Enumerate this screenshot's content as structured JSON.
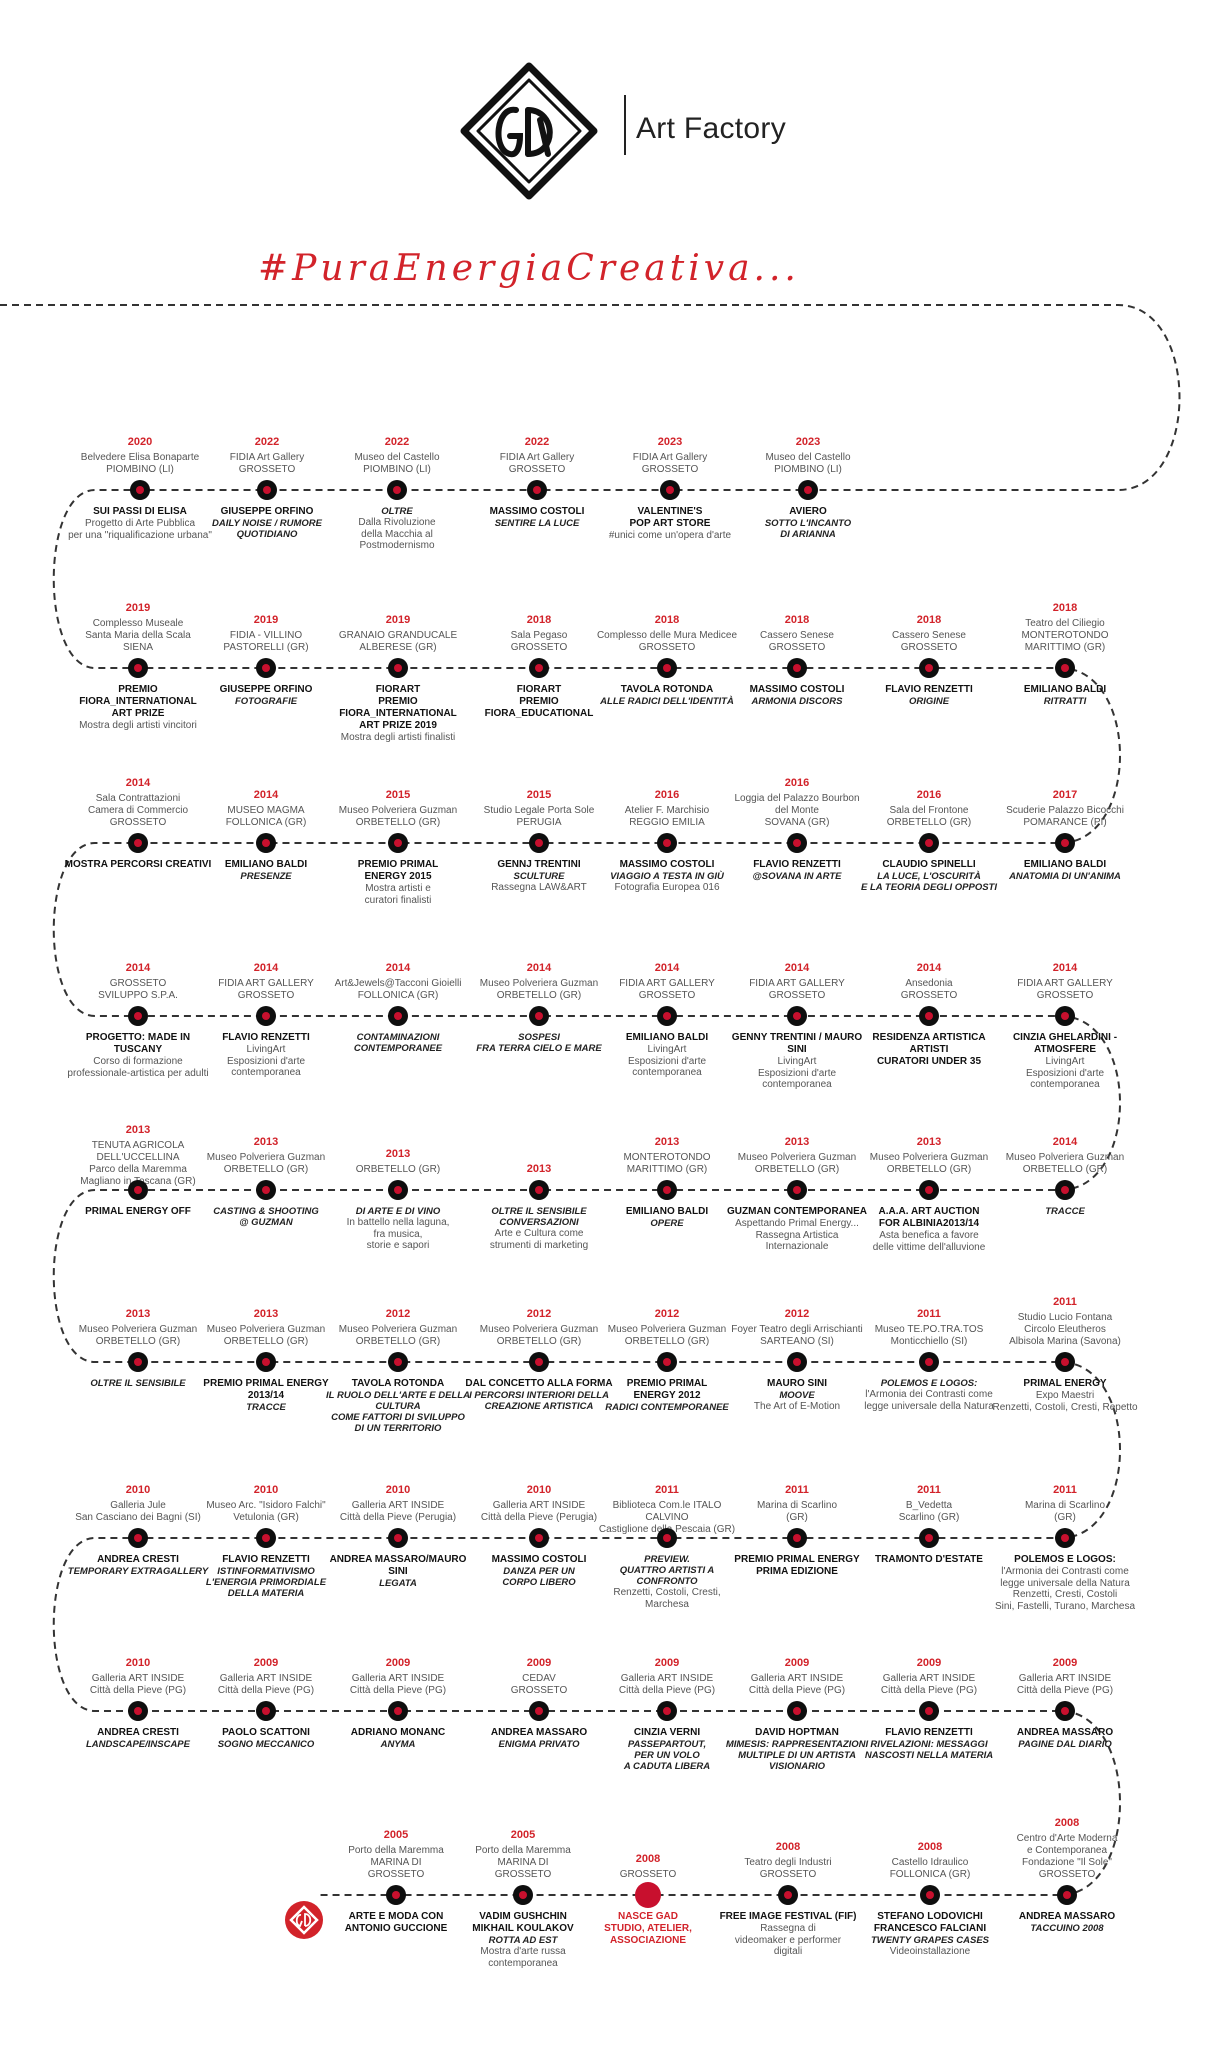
{
  "brand": {
    "logo_text": "GAD",
    "name": "Art Factory",
    "tagline": "#PuraEnergiaCreativa...",
    "accent_color": "#d2232a"
  },
  "rows": [
    {
      "direction": "ltr",
      "events": [
        {
          "year": "2020",
          "venue": "Belvedere Elisa Bonaparte\nPIOMBINO (LI)",
          "title": "SUI PASSI DI ELISA",
          "subtitle": "",
          "desc": "Progetto di Arte Pubblica\nper una \"riqualificazione urbana\""
        },
        {
          "year": "2022",
          "venue": "FIDIA Art Gallery\nGROSSETO",
          "title": "GIUSEPPE ORFINO",
          "subtitle": "DAILY NOISE / RUMORE\nQUOTIDIANO",
          "desc": ""
        },
        {
          "year": "2022",
          "venue": "Museo del Castello\nPIOMBINO (LI)",
          "title": "",
          "subtitle": "OLTRE",
          "desc": "Dalla Rivoluzione\ndella Macchia al\nPostmodernismo"
        },
        {
          "year": "2022",
          "venue": "FIDIA Art Gallery\nGROSSETO",
          "title": "MASSIMO COSTOLI",
          "subtitle": "SENTIRE LA LUCE",
          "desc": ""
        },
        {
          "year": "2023",
          "venue": "FIDIA Art Gallery\nGROSSETO",
          "title": "VALENTINE'S\nPOP ART STORE",
          "subtitle": "",
          "desc": "#unici come un'opera d'arte"
        },
        {
          "year": "2023",
          "venue": "Museo del Castello\nPIOMBINO (LI)",
          "title": "AVIERO",
          "subtitle": "SOTTO L'INCANTO\nDI ARIANNA",
          "desc": ""
        }
      ]
    },
    {
      "direction": "rtl",
      "events": [
        {
          "year": "2019",
          "venue": "Complesso Museale\nSanta Maria della Scala\nSIENA",
          "title": "PREMIO FIORA_INTERNATIONAL\nART PRIZE",
          "subtitle": "",
          "desc": "Mostra degli artisti vincitori"
        },
        {
          "year": "2019",
          "venue": "FIDIA - VILLINO\nPASTORELLI (GR)",
          "title": "GIUSEPPE ORFINO",
          "subtitle": "FOTOGRAFIE",
          "desc": ""
        },
        {
          "year": "2019",
          "venue": "GRANAIO GRANDUCALE\nALBERESE (GR)",
          "title": "FIORART\nPREMIO FIORA_INTERNATIONAL\nART PRIZE 2019",
          "subtitle": "",
          "desc": "Mostra degli artisti finalisti"
        },
        {
          "year": "2018",
          "venue": "Sala Pegaso\nGROSSETO",
          "title": "FIORART\nPREMIO\nFIORA_EDUCATIONAL",
          "subtitle": "",
          "desc": ""
        },
        {
          "year": "2018",
          "venue": "Complesso delle Mura Medicee\nGROSSETO",
          "title": "TAVOLA ROTONDA",
          "subtitle": "ALLE RADICI DELL'IDENTITÀ",
          "desc": ""
        },
        {
          "year": "2018",
          "venue": "Cassero Senese\nGROSSETO",
          "title": "MASSIMO COSTOLI",
          "subtitle": "ARMONIA DISCORS",
          "desc": ""
        },
        {
          "year": "2018",
          "venue": "Cassero Senese\nGROSSETO",
          "title": "FLAVIO RENZETTI",
          "subtitle": "ORIGINE",
          "desc": ""
        },
        {
          "year": "2018",
          "venue": "Teatro del Ciliegio\nMONTEROTONDO\nMARITTIMO (GR)",
          "title": "EMILIANO BALDI",
          "subtitle": "RITRATTI",
          "desc": ""
        }
      ]
    },
    {
      "direction": "ltr",
      "events": [
        {
          "year": "2014",
          "venue": "Sala Contrattazioni\nCamera di Commercio\nGROSSETO",
          "title": "MOSTRA PERCORSI CREATIVI",
          "subtitle": "",
          "desc": ""
        },
        {
          "year": "2014",
          "venue": "MUSEO MAGMA\nFOLLONICA (GR)",
          "title": "EMILIANO BALDI",
          "subtitle": "PRESENZE",
          "desc": ""
        },
        {
          "year": "2015",
          "venue": "Museo Polveriera Guzman\nORBETELLO (GR)",
          "title": "PREMIO PRIMAL\nENERGY 2015",
          "subtitle": "",
          "desc": "Mostra artisti e\ncuratori finalisti"
        },
        {
          "year": "2015",
          "venue": "Studio Legale Porta Sole\nPERUGIA",
          "title": "GENNJ TRENTINI",
          "subtitle": "SCULTURE",
          "desc": "Rassegna LAW&ART"
        },
        {
          "year": "2016",
          "venue": "Atelier F. Marchisio\nREGGIO EMILIA",
          "title": "MASSIMO COSTOLI",
          "subtitle": "VIAGGIO A TESTA IN GIÙ",
          "desc": "Fotografia Europea 016"
        },
        {
          "year": "2016",
          "venue": "Loggia del Palazzo Bourbon\ndel Monte\nSOVANA (GR)",
          "title": "FLAVIO RENZETTI",
          "subtitle": "@SOVANA IN ARTE",
          "desc": ""
        },
        {
          "year": "2016",
          "venue": "Sala del Frontone\nORBETELLO (GR)",
          "title": "CLAUDIO SPINELLI",
          "subtitle": "LA LUCE, L'OSCURITÀ\nE LA TEORIA DEGLI OPPOSTI",
          "desc": ""
        },
        {
          "year": "2017",
          "venue": "Scuderie Palazzo Bicocchi\nPOMARANCE (PI)",
          "title": "EMILIANO BALDI",
          "subtitle": "ANATOMIA DI UN'ANIMA",
          "desc": ""
        }
      ]
    },
    {
      "direction": "rtl",
      "events": [
        {
          "year": "2014",
          "venue": "GROSSETO\nSVILUPPO S.P.A.",
          "title": "PROGETTO: MADE IN TUSCANY",
          "subtitle": "",
          "desc": "Corso di formazione\nprofessionale-artistica per adulti"
        },
        {
          "year": "2014",
          "venue": "FIDIA ART GALLERY\nGROSSETO",
          "title": "FLAVIO RENZETTI",
          "subtitle": "",
          "desc": "LivingArt\nEsposizioni d'arte\ncontemporanea"
        },
        {
          "year": "2014",
          "venue": "Art&Jewels@Tacconi Gioielli\nFOLLONICA (GR)",
          "title": "",
          "subtitle": "CONTAMINAZIONI\nCONTEMPORANEE",
          "desc": ""
        },
        {
          "year": "2014",
          "venue": "Museo Polveriera Guzman\nORBETELLO (GR)",
          "title": "",
          "subtitle": "SOSPESI\nFRA TERRA CIELO E MARE",
          "desc": ""
        },
        {
          "year": "2014",
          "venue": "FIDIA ART GALLERY\nGROSSETO",
          "title": "EMILIANO BALDI",
          "subtitle": "",
          "desc": "LivingArt\nEsposizioni d'arte\ncontemporanea"
        },
        {
          "year": "2014",
          "venue": "FIDIA ART GALLERY\nGROSSETO",
          "title": "GENNY TRENTINI / MAURO SINI",
          "subtitle": "",
          "desc": "LivingArt\nEsposizioni d'arte\ncontemporanea"
        },
        {
          "year": "2014",
          "venue": "Ansedonia\nGROSSETO",
          "title": "RESIDENZA ARTISTICA\nARTISTI\nCURATORI UNDER 35",
          "subtitle": "",
          "desc": ""
        },
        {
          "year": "2014",
          "venue": "FIDIA ART GALLERY\nGROSSETO",
          "title": "CINZIA GHELARDINI - ATMOSFERE",
          "subtitle": "",
          "desc": "LivingArt\nEsposizioni d'arte\ncontemporanea"
        }
      ]
    },
    {
      "direction": "ltr",
      "events": [
        {
          "year": "2013",
          "venue": "TENUTA AGRICOLA DELL'UCCELLINA\nParco della Maremma\nMagliano in Toscana (GR)",
          "title": "PRIMAL ENERGY OFF",
          "subtitle": "",
          "desc": ""
        },
        {
          "year": "2013",
          "venue": "Museo Polveriera Guzman\nORBETELLO (GR)",
          "title": "",
          "subtitle": "CASTING & SHOOTING\n@ GUZMAN",
          "desc": ""
        },
        {
          "year": "2013",
          "venue": "ORBETELLO (GR)",
          "title": "",
          "subtitle": "DI ARTE E DI VINO",
          "desc": "In battello nella laguna,\nfra musica,\nstorie e sapori"
        },
        {
          "year": "2013",
          "venue": "",
          "title": "",
          "subtitle": "OLTRE IL SENSIBILE\nCONVERSAZIONI",
          "desc": "Arte e Cultura come\nstrumenti di marketing"
        },
        {
          "year": "2013",
          "venue": "MONTEROTONDO\nMARITTIMO (GR)",
          "title": "EMILIANO BALDI",
          "subtitle": "OPERE",
          "desc": ""
        },
        {
          "year": "2013",
          "venue": "Museo Polveriera Guzman\nORBETELLO (GR)",
          "title": "GUZMAN CONTEMPORANEA",
          "subtitle": "",
          "desc": "Aspettando Primal Energy...\nRassegna Artistica Internazionale"
        },
        {
          "year": "2013",
          "venue": "Museo Polveriera Guzman\nORBETELLO (GR)",
          "title": "A.A.A. ART AUCTION\nFOR ALBINIA2013/14",
          "subtitle": "",
          "desc": "Asta benefica a favore\ndelle vittime dell'alluvione"
        },
        {
          "year": "2014",
          "venue": "Museo Polveriera Guzman\nORBETELLO (GR)",
          "title": "",
          "subtitle": "TRACCE",
          "desc": ""
        }
      ]
    },
    {
      "direction": "rtl",
      "events": [
        {
          "year": "2013",
          "venue": "Museo Polveriera Guzman\nORBETELLO (GR)",
          "title": "",
          "subtitle": "OLTRE IL SENSIBILE",
          "desc": ""
        },
        {
          "year": "2013",
          "venue": "Museo Polveriera Guzman\nORBETELLO (GR)",
          "title": "PREMIO PRIMAL ENERGY\n2013/14",
          "subtitle": "TRACCE",
          "desc": ""
        },
        {
          "year": "2012",
          "venue": "Museo Polveriera Guzman\nORBETELLO (GR)",
          "title": "TAVOLA ROTONDA",
          "subtitle": "IL RUOLO DELL'ARTE E DELLA CULTURA\nCOME FATTORI DI SVILUPPO\nDI UN TERRITORIO",
          "desc": ""
        },
        {
          "year": "2012",
          "venue": "Museo Polveriera Guzman\nORBETELLO (GR)",
          "title": "DAL CONCETTO ALLA FORMA",
          "subtitle": "I PERCORSI INTERIORI DELLA\nCREAZIONE ARTISTICA",
          "desc": ""
        },
        {
          "year": "2012",
          "venue": "Museo Polveriera Guzman\nORBETELLO (GR)",
          "title": "PREMIO PRIMAL\nENERGY 2012",
          "subtitle": "RADICI CONTEMPORANEE",
          "desc": ""
        },
        {
          "year": "2012",
          "venue": "Foyer Teatro degli Arrischianti\nSARTEANO (SI)",
          "title": "MAURO SINI",
          "subtitle": "MOOVE",
          "desc": "The Art of E-Motion"
        },
        {
          "year": "2011",
          "venue": "Museo TE.PO.TRA.TOS\nMonticchiello (SI)",
          "title": "",
          "subtitle": "POLEMOS E LOGOS:",
          "desc": "l'Armonia dei Contrasti come\nlegge universale della Natura"
        },
        {
          "year": "2011",
          "venue": "Studio Lucio Fontana\nCircolo Eleutheros\nAlbisola Marina (Savona)",
          "title": "PRIMAL ENERGY",
          "subtitle": "",
          "desc": "Expo Maestri\nRenzetti, Costoli, Cresti, Repetto"
        }
      ]
    },
    {
      "direction": "ltr",
      "events": [
        {
          "year": "2010",
          "venue": "Galleria Jule\nSan Casciano dei Bagni (SI)",
          "title": "ANDREA CRESTI",
          "subtitle": "TEMPORARY EXTRAGALLERY",
          "desc": ""
        },
        {
          "year": "2010",
          "venue": "Museo Arc. \"Isidoro Falchi\"\nVetulonia (GR)",
          "title": "FLAVIO RENZETTI",
          "subtitle": "ISTINFORMATIVISMO\nL'ENERGIA PRIMORDIALE\nDELLA MATERIA",
          "desc": ""
        },
        {
          "year": "2010",
          "venue": "Galleria ART INSIDE\nCittà della Pieve (Perugia)",
          "title": "ANDREA MASSARO/MAURO SINI",
          "subtitle": "LEGATA",
          "desc": ""
        },
        {
          "year": "2010",
          "venue": "Galleria ART INSIDE\nCittà della Pieve (Perugia)",
          "title": "MASSIMO COSTOLI",
          "subtitle": "DANZA PER UN\nCORPO LIBERO",
          "desc": ""
        },
        {
          "year": "2011",
          "venue": "Biblioteca Com.le ITALO CALVINO\nCastiglione della Pescaia (GR)",
          "title": "",
          "subtitle": "PREVIEW.\nQUATTRO ARTISTI A CONFRONTO",
          "desc": "Renzetti, Costoli, Cresti, Marchesa"
        },
        {
          "year": "2011",
          "venue": "Marina di Scarlino\n(GR)",
          "title": "PREMIO PRIMAL ENERGY\nPRIMA EDIZIONE",
          "subtitle": "",
          "desc": ""
        },
        {
          "year": "2011",
          "venue": "B_Vedetta\nScarlino (GR)",
          "title": "TRAMONTO D'ESTATE",
          "subtitle": "",
          "desc": ""
        },
        {
          "year": "2011",
          "venue": "Marina di Scarlino\n(GR)",
          "title": "POLEMOS E LOGOS:",
          "subtitle": "",
          "desc": "l'Armonia dei Contrasti come\nlegge universale della Natura\nRenzetti, Cresti, Costoli\nSini, Fastelli, Turano, Marchesa"
        }
      ]
    },
    {
      "direction": "rtl",
      "events": [
        {
          "year": "2010",
          "venue": "Galleria ART INSIDE\nCittà della Pieve (PG)",
          "title": "ANDREA CRESTI",
          "subtitle": "LANDSCAPE/INSCAPE",
          "desc": ""
        },
        {
          "year": "2009",
          "venue": "Galleria ART INSIDE\nCittà della Pieve (PG)",
          "title": "PAOLO SCATTONI",
          "subtitle": "SOGNO MECCANICO",
          "desc": ""
        },
        {
          "year": "2009",
          "venue": "Galleria ART INSIDE\nCittà della Pieve (PG)",
          "title": "ADRIANO MONANC",
          "subtitle": "ANYMA",
          "desc": ""
        },
        {
          "year": "2009",
          "venue": "CEDAV\nGROSSETO",
          "title": "ANDREA MASSARO",
          "subtitle": "ENIGMA PRIVATO",
          "desc": ""
        },
        {
          "year": "2009",
          "venue": "Galleria ART INSIDE\nCittà della Pieve (PG)",
          "title": "CINZIA VERNI",
          "subtitle": "PASSEPARTOUT,\nPER UN VOLO\nA CADUTA LIBERA",
          "desc": ""
        },
        {
          "year": "2009",
          "venue": "Galleria ART INSIDE\nCittà della Pieve (PG)",
          "title": "DAVID HOPTMAN",
          "subtitle": "MIMESIS: RAPPRESENTAZIONI\nMULTIPLE DI UN ARTISTA\nVISIONARIO",
          "desc": ""
        },
        {
          "year": "2009",
          "venue": "Galleria ART INSIDE\nCittà della Pieve (PG)",
          "title": "FLAVIO RENZETTI",
          "subtitle": "RIVELAZIONI: MESSAGGI\nNASCOSTI NELLA MATERIA",
          "desc": ""
        },
        {
          "year": "2009",
          "venue": "Galleria ART INSIDE\nCittà della Pieve (PG)",
          "title": "ANDREA MASSARO",
          "subtitle": "PAGINE DAL DIARIO",
          "desc": ""
        }
      ]
    },
    {
      "direction": "ltr",
      "events": [
        {
          "year": "2005",
          "venue": "Porto della Maremma\nMARINA DI\nGROSSETO",
          "title": "ARTE E MODA CON\nANTONIO GUCCIONE",
          "subtitle": "",
          "desc": ""
        },
        {
          "year": "2005",
          "venue": "Porto della Maremma\nMARINA DI\nGROSSETO",
          "title": "VADIM GUSHCHIN\nMIKHAIL KOULAKOV",
          "subtitle": "ROTTA AD EST",
          "desc": "Mostra d'arte russa\ncontemporanea"
        },
        {
          "year": "2008",
          "venue": "GROSSETO",
          "title": "NASCE GAD\nSTUDIO, ATELIER,\nASSOCIAZIONE",
          "subtitle": "",
          "desc": "",
          "highlight": true
        },
        {
          "year": "2008",
          "venue": "Teatro degli Industri\nGROSSETO",
          "title": "FREE IMAGE FESTIVAL (FIF)",
          "subtitle": "",
          "desc": "Rassegna di\nvideomaker e performer\ndigitali"
        },
        {
          "year": "2008",
          "venue": "Castello Idraulico\nFOLLONICA (GR)",
          "title": "STEFANO LODOVICHI\nFRANCESCO FALCIANI",
          "subtitle": "TWENTY GRAPES CASES",
          "desc": "Videoinstallazione"
        },
        {
          "year": "2008",
          "venue": "Centro d'Arte Moderna\ne Contemporanea\nFondazione \"Il Sole\"\nGROSSETO",
          "title": "ANDREA MASSARO",
          "subtitle": "TACCUINO 2008",
          "desc": ""
        }
      ]
    }
  ]
}
